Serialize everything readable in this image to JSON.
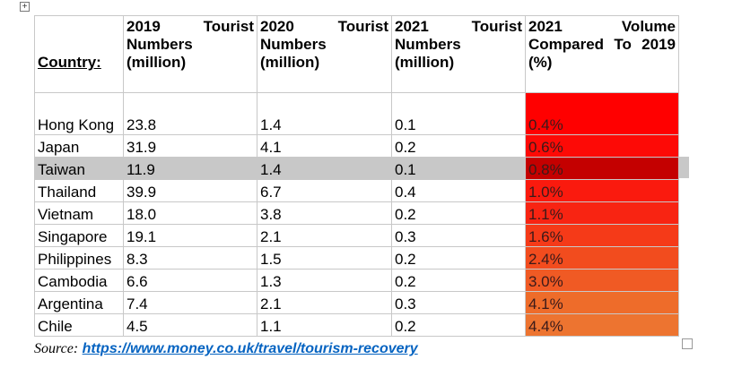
{
  "table": {
    "headers": [
      "Country:",
      "2019 Tourist Numbers (million)",
      "2020 Tourist Numbers (million)",
      "2021 Tourist Numbers (million)",
      "2021 Volume Compared To 2019 (%)"
    ],
    "rows": [
      [
        "Hong Kong",
        "23.8",
        "1.4",
        "0.1",
        "0.4%"
      ],
      [
        "Japan",
        "31.9",
        "4.1",
        "0.2",
        "0.6%"
      ],
      [
        "Taiwan",
        "11.9",
        "1.4",
        "0.1",
        "0.8%"
      ],
      [
        "Thailand",
        "39.9",
        "6.7",
        "0.4",
        "1.0%"
      ],
      [
        "Vietnam",
        "18.0",
        "3.8",
        "0.2",
        "1.1%"
      ],
      [
        "Singapore",
        "19.1",
        "2.1",
        "0.3",
        "1.6%"
      ],
      [
        "Philippines",
        "8.3",
        "1.5",
        "0.2",
        "2.4%"
      ],
      [
        "Cambodia",
        "6.6",
        "1.3",
        "0.2",
        "3.0%"
      ],
      [
        "Argentina",
        "7.4",
        "2.1",
        "0.3",
        "4.1%"
      ],
      [
        "Chile",
        "4.5",
        "1.1",
        "0.2",
        "4.4%"
      ]
    ]
  },
  "source": {
    "label": "Source:",
    "link": "https://www.money.co.uk/travel/tourism-recovery"
  }
}
